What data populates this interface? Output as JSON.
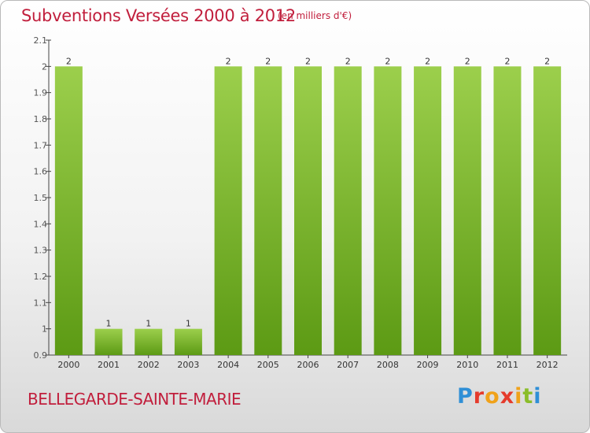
{
  "header": {
    "title": "Subventions Versées 2000 à 2012",
    "units": "(en milliers d'€)"
  },
  "footer": {
    "commune": "BELLEGARDE-SAINTE-MARIE",
    "logo_text": "Proxiti",
    "logo_colors": [
      "#2f8fd6",
      "#e53b2c",
      "#f0a21a",
      "#e53b2c",
      "#f0a21a",
      "#8bbd2a",
      "#2f8fd6"
    ]
  },
  "colors": {
    "bar_light": "#9ccf4c",
    "bar_dark": "#5c9a14",
    "label_text": "#333333",
    "axis_text": "#555555"
  },
  "chart_data": {
    "type": "bar",
    "title": "Subventions Versées 2000 à 2012",
    "categories": [
      "2000",
      "2001",
      "2002",
      "2003",
      "2004",
      "2005",
      "2006",
      "2007",
      "2008",
      "2009",
      "2010",
      "2011",
      "2012"
    ],
    "values": [
      2,
      1,
      1,
      1,
      2,
      2,
      2,
      2,
      2,
      2,
      2,
      2,
      2
    ],
    "data_labels": [
      "2",
      "1",
      "1",
      "1",
      "2",
      "2",
      "2",
      "2",
      "2",
      "2",
      "2",
      "2",
      "2"
    ],
    "ylim": [
      0.9,
      2.1
    ],
    "yticks": [
      "0.9",
      "1",
      "1.1",
      "1.2",
      "1.3",
      "1.4",
      "1.5",
      "1.6",
      "1.7",
      "1.8",
      "1.9",
      "2",
      "2.1"
    ],
    "grid": false,
    "xlabel": "",
    "ylabel": ""
  }
}
